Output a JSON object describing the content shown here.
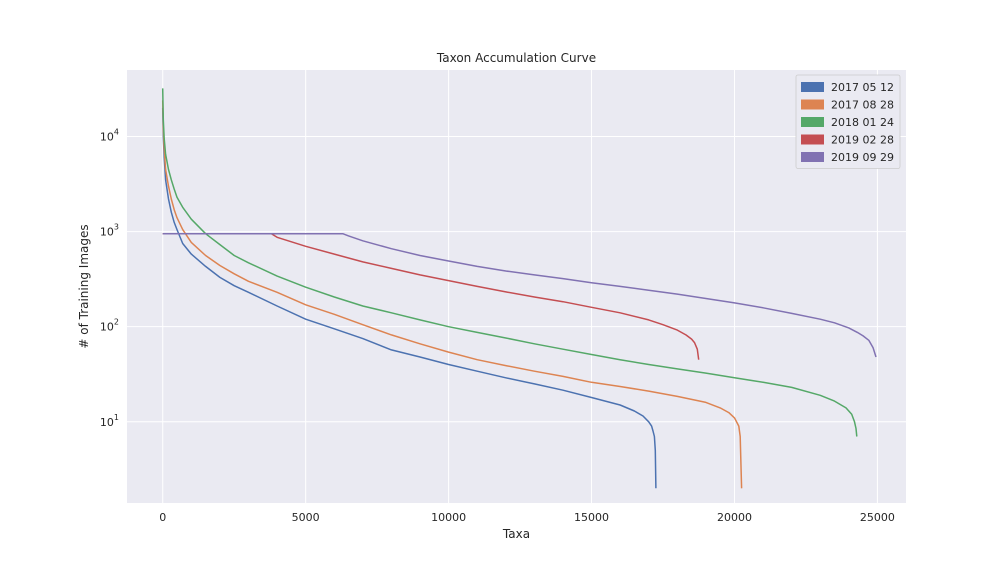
{
  "chart_data": {
    "type": "line",
    "title": "Taxon Accumulation Curve",
    "xlabel": "Taxa",
    "ylabel": "# of Training Images",
    "xlim": [
      -1250,
      26000
    ],
    "ylim": [
      1.4,
      50000
    ],
    "yscale": "log",
    "grid": true,
    "legend_position": "top-right",
    "x_ticks": [
      0,
      5000,
      10000,
      15000,
      20000,
      25000
    ],
    "x_tick_labels": [
      "0",
      "5000",
      "10000",
      "15000",
      "20000",
      "25000"
    ],
    "y_ticks": [
      10,
      100,
      1000,
      10000
    ],
    "y_tick_labels": [
      {
        "base": "10",
        "exp": "1"
      },
      {
        "base": "10",
        "exp": "2"
      },
      {
        "base": "10",
        "exp": "3"
      },
      {
        "base": "10",
        "exp": "4"
      }
    ],
    "series": [
      {
        "name": "2017 05 12",
        "color": "#4c72b0",
        "x": [
          0,
          20,
          50,
          100,
          200,
          300,
          400,
          500,
          700,
          1000,
          1500,
          2000,
          2500,
          3000,
          4000,
          5000,
          6000,
          7000,
          8000,
          9000,
          10000,
          11000,
          12000,
          13000,
          14000,
          15000,
          16000,
          16500,
          16800,
          17000,
          17100,
          17150,
          17200,
          17230,
          17250
        ],
        "y": [
          20000,
          10000,
          6000,
          3500,
          2200,
          1600,
          1250,
          1050,
          750,
          580,
          430,
          330,
          270,
          230,
          165,
          120,
          95,
          75,
          57,
          48,
          40,
          34,
          29,
          25,
          21.5,
          18,
          15,
          13,
          11.5,
          10,
          9,
          8,
          7,
          5,
          2
        ]
      },
      {
        "name": "2017 08 28",
        "color": "#dd8452",
        "x": [
          0,
          20,
          50,
          100,
          200,
          300,
          400,
          500,
          700,
          1000,
          1500,
          2000,
          2500,
          3000,
          4000,
          5000,
          6000,
          7000,
          8000,
          9000,
          10000,
          11000,
          12000,
          13000,
          14000,
          15000,
          16000,
          17000,
          18000,
          19000,
          19500,
          19800,
          20000,
          20150,
          20200,
          20250
        ],
        "y": [
          24000,
          12000,
          7500,
          4500,
          3000,
          2200,
          1700,
          1400,
          1050,
          770,
          560,
          440,
          360,
          300,
          230,
          170,
          135,
          105,
          82,
          66,
          54,
          45,
          39,
          34,
          30,
          26,
          23.5,
          21,
          18.5,
          16,
          14,
          12.5,
          11,
          9,
          7,
          2
        ]
      },
      {
        "name": "2018 01 24",
        "color": "#55a868",
        "x": [
          0,
          20,
          50,
          100,
          200,
          300,
          400,
          500,
          700,
          1000,
          1500,
          2000,
          2500,
          3000,
          4000,
          5000,
          6000,
          7000,
          8000,
          9000,
          10000,
          11000,
          12000,
          13000,
          14000,
          15000,
          16000,
          17000,
          18000,
          19000,
          20000,
          21000,
          22000,
          23000,
          23500,
          23900,
          24100,
          24200,
          24250,
          24280
        ],
        "y": [
          32000,
          15000,
          9500,
          6500,
          4500,
          3500,
          2800,
          2300,
          1800,
          1350,
          950,
          730,
          560,
          470,
          340,
          260,
          205,
          165,
          140,
          118,
          100,
          87,
          76,
          66,
          58,
          51,
          45,
          40,
          36,
          32.5,
          29,
          26,
          23,
          19,
          16.5,
          14,
          12,
          10,
          8.5,
          7
        ]
      },
      {
        "name": "2019 02 28",
        "color": "#c44e52",
        "x": [
          0,
          3800,
          4000,
          5000,
          6000,
          7000,
          8000,
          9000,
          10000,
          11000,
          12000,
          13000,
          14000,
          15000,
          16000,
          17000,
          17500,
          18000,
          18300,
          18500,
          18600,
          18700,
          18750
        ],
        "y": [
          950,
          950,
          870,
          700,
          580,
          480,
          410,
          350,
          305,
          265,
          232,
          205,
          183,
          160,
          140,
          118,
          105,
          92,
          82,
          74,
          68,
          58,
          45
        ]
      },
      {
        "name": "2019 09 29",
        "color": "#8172b2",
        "x": [
          0,
          6300,
          6500,
          7000,
          8000,
          9000,
          10000,
          11000,
          12000,
          13000,
          14000,
          15000,
          16000,
          17000,
          18000,
          19000,
          20000,
          21000,
          22000,
          23000,
          23500,
          24000,
          24300,
          24500,
          24700,
          24850,
          24950
        ],
        "y": [
          950,
          950,
          900,
          800,
          660,
          560,
          490,
          430,
          385,
          350,
          320,
          290,
          265,
          242,
          220,
          198,
          178,
          158,
          138,
          120,
          110,
          97,
          87,
          80,
          72,
          60,
          48
        ]
      }
    ]
  }
}
